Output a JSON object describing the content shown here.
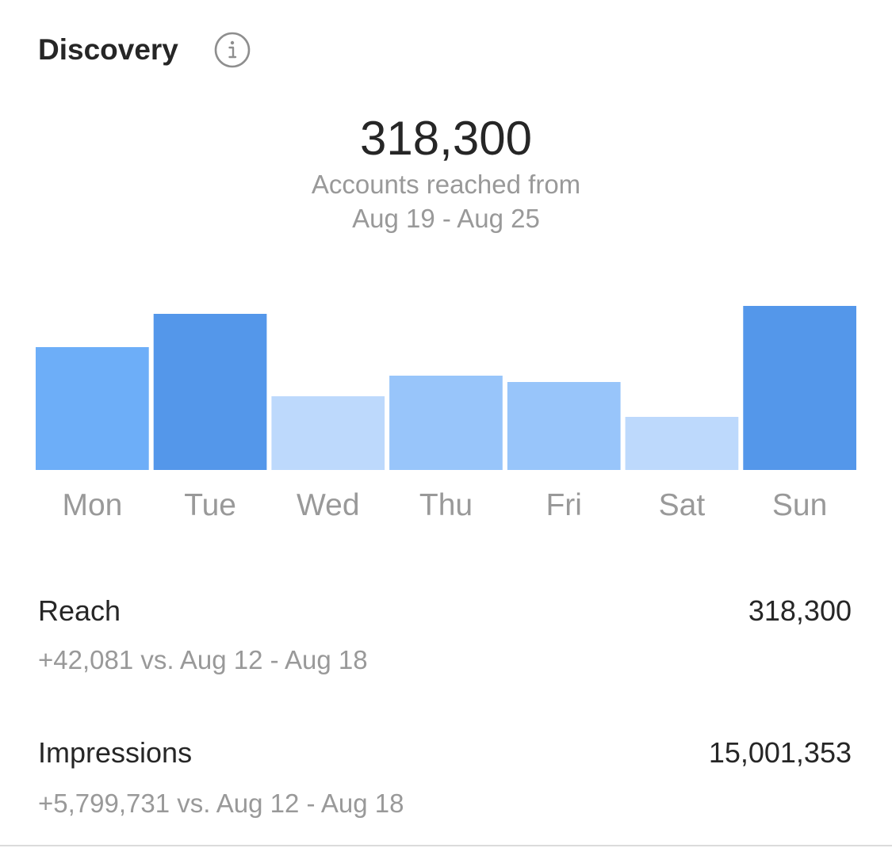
{
  "header": {
    "title": "Discovery",
    "info_icon": "info-icon"
  },
  "summary": {
    "value": "318,300",
    "caption_line1": "Accounts reached from",
    "caption_line2": "Aug 19 - Aug 25"
  },
  "chart_data": {
    "type": "bar",
    "categories": [
      "Mon",
      "Tue",
      "Wed",
      "Thu",
      "Fri",
      "Sat",
      "Sun"
    ],
    "values": [
      155,
      197,
      93,
      119,
      111,
      67,
      207
    ],
    "ylim": [
      0,
      207
    ],
    "colors": [
      "#6daef8",
      "#5497ea",
      "#bdd9fc",
      "#98c5fa",
      "#98c5fa",
      "#bdd9fc",
      "#5497ea"
    ],
    "grid": false
  },
  "metrics": [
    {
      "label": "Reach",
      "value": "318,300",
      "delta": "+42,081 vs. Aug 12 - Aug 18"
    },
    {
      "label": "Impressions",
      "value": "15,001,353",
      "delta": "+5,799,731 vs. Aug 12 - Aug 18"
    }
  ]
}
